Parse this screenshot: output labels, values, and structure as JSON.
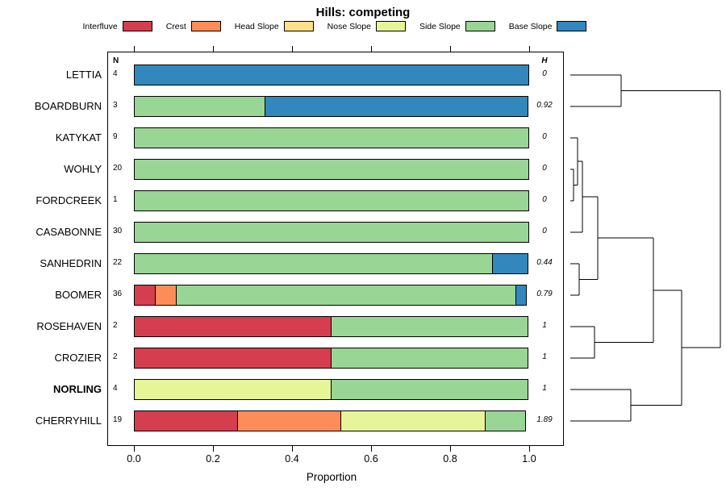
{
  "title": "Hills: competing",
  "columns": {
    "n": "N",
    "h": "H"
  },
  "axis": {
    "label": "Proportion",
    "ticks": [
      {
        "value": 0.0,
        "label": "0.0"
      },
      {
        "value": 0.2,
        "label": "0.2"
      },
      {
        "value": 0.4,
        "label": "0.4"
      },
      {
        "value": 0.6,
        "label": "0.6"
      },
      {
        "value": 0.8,
        "label": "0.8"
      },
      {
        "value": 1.0,
        "label": "1.0"
      }
    ]
  },
  "legend": {
    "items": [
      {
        "label": "Interfluve",
        "color": "#D53E4F"
      },
      {
        "label": "Crest",
        "color": "#FC8D59"
      },
      {
        "label": "Head Slope",
        "color": "#FEE08B"
      },
      {
        "label": "Nose Slope",
        "color": "#E6F598"
      },
      {
        "label": "Side Slope",
        "color": "#99D594"
      },
      {
        "label": "Base Slope",
        "color": "#3288BD"
      }
    ]
  },
  "chart_data": {
    "type": "bar",
    "orientation": "horizontal-stacked",
    "title": "Hills: competing",
    "xlabel": "Proportion",
    "xlim": [
      0,
      1
    ],
    "legend_position": "top",
    "series_names": [
      "Interfluve",
      "Crest",
      "Head Slope",
      "Nose Slope",
      "Side Slope",
      "Base Slope"
    ],
    "rows": [
      {
        "name": "LETTIA",
        "n": 4,
        "h": "0",
        "bold": false,
        "segments": [
          {
            "name": "Base Slope",
            "value": 1.0
          }
        ]
      },
      {
        "name": "BOARDBURN",
        "n": 3,
        "h": "0.92",
        "bold": false,
        "segments": [
          {
            "name": "Side Slope",
            "value": 0.333
          },
          {
            "name": "Base Slope",
            "value": 0.667
          }
        ]
      },
      {
        "name": "KATYKAT",
        "n": 9,
        "h": "0",
        "bold": false,
        "segments": [
          {
            "name": "Side Slope",
            "value": 1.0
          }
        ]
      },
      {
        "name": "WOHLY",
        "n": 20,
        "h": "0",
        "bold": false,
        "segments": [
          {
            "name": "Side Slope",
            "value": 1.0
          }
        ]
      },
      {
        "name": "FORDCREEK",
        "n": 1,
        "h": "0",
        "bold": false,
        "segments": [
          {
            "name": "Side Slope",
            "value": 1.0
          }
        ]
      },
      {
        "name": "CASABONNE",
        "n": 30,
        "h": "0",
        "bold": false,
        "segments": [
          {
            "name": "Side Slope",
            "value": 1.0
          }
        ]
      },
      {
        "name": "SANHEDRIN",
        "n": 22,
        "h": "0.44",
        "bold": false,
        "segments": [
          {
            "name": "Side Slope",
            "value": 0.909
          },
          {
            "name": "Base Slope",
            "value": 0.091
          }
        ]
      },
      {
        "name": "BOOMER",
        "n": 36,
        "h": "0.79",
        "bold": false,
        "segments": [
          {
            "name": "Interfluve",
            "value": 0.056
          },
          {
            "name": "Crest",
            "value": 0.056
          },
          {
            "name": "Side Slope",
            "value": 0.861
          },
          {
            "name": "Base Slope",
            "value": 0.028
          }
        ]
      },
      {
        "name": "ROSEHAVEN",
        "n": 2,
        "h": "1",
        "bold": false,
        "segments": [
          {
            "name": "Interfluve",
            "value": 0.5
          },
          {
            "name": "Side Slope",
            "value": 0.5
          }
        ]
      },
      {
        "name": "CROZIER",
        "n": 2,
        "h": "1",
        "bold": false,
        "segments": [
          {
            "name": "Interfluve",
            "value": 0.5
          },
          {
            "name": "Side Slope",
            "value": 0.5
          }
        ]
      },
      {
        "name": "NORLING",
        "n": 4,
        "h": "1",
        "bold": true,
        "segments": [
          {
            "name": "Nose Slope",
            "value": 0.5
          },
          {
            "name": "Side Slope",
            "value": 0.5
          }
        ]
      },
      {
        "name": "CHERRYHILL",
        "n": 19,
        "h": "1.89",
        "bold": false,
        "segments": [
          {
            "name": "Interfluve",
            "value": 0.263
          },
          {
            "name": "Crest",
            "value": 0.263
          },
          {
            "name": "Nose Slope",
            "value": 0.368
          },
          {
            "name": "Side Slope",
            "value": 0.105
          }
        ]
      }
    ],
    "dendrogram": {
      "panel_size": [
        200,
        489
      ],
      "segments": [
        [
          7,
          29,
          70,
          29
        ],
        [
          7,
          68,
          70,
          68
        ],
        [
          70,
          29,
          70,
          68
        ],
        [
          70,
          48.5,
          193,
          48.5
        ],
        [
          7,
          146,
          11,
          146
        ],
        [
          7,
          185,
          11,
          185
        ],
        [
          11,
          146,
          11,
          185
        ],
        [
          11,
          165.5,
          16,
          165.5
        ],
        [
          7,
          107,
          16,
          107
        ],
        [
          16,
          107,
          16,
          165.5
        ],
        [
          16,
          136,
          22,
          136
        ],
        [
          7,
          224,
          22,
          224
        ],
        [
          22,
          136,
          22,
          224
        ],
        [
          22,
          180,
          41,
          180
        ],
        [
          7,
          263,
          18,
          263
        ],
        [
          7,
          302,
          18,
          302
        ],
        [
          18,
          263,
          18,
          302
        ],
        [
          18,
          282.5,
          41,
          282.5
        ],
        [
          41,
          180,
          41,
          282.5
        ],
        [
          41,
          231,
          110,
          231
        ],
        [
          7,
          341,
          37,
          341
        ],
        [
          7,
          380,
          37,
          380
        ],
        [
          37,
          341,
          37,
          380
        ],
        [
          37,
          360.5,
          110,
          360.5
        ],
        [
          110,
          231,
          110,
          360.5
        ],
        [
          110,
          296,
          145,
          296
        ],
        [
          7,
          419,
          82,
          419
        ],
        [
          7,
          458,
          82,
          458
        ],
        [
          82,
          419,
          82,
          458
        ],
        [
          82,
          438.5,
          145,
          438.5
        ],
        [
          145,
          296,
          145,
          438.5
        ],
        [
          145,
          367,
          193,
          367
        ],
        [
          193,
          48.5,
          193,
          367
        ]
      ]
    }
  }
}
